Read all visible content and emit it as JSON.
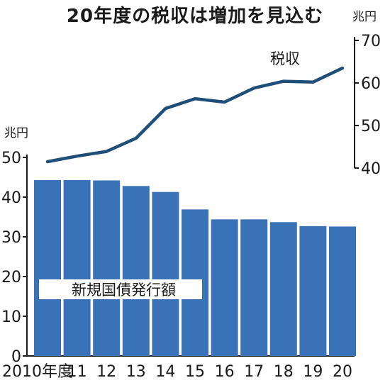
{
  "title": "20年度の税収は増加を見込む",
  "chart_data": {
    "type": "bar+line",
    "categories": [
      "2010年度",
      "11",
      "12",
      "13",
      "14",
      "15",
      "16",
      "17",
      "18",
      "19",
      "20"
    ],
    "series": [
      {
        "name": "新規国債発行額",
        "type": "bar",
        "axis": "left",
        "values": [
          44.3,
          44.3,
          44.2,
          42.8,
          41.3,
          36.9,
          34.4,
          34.4,
          33.7,
          32.7,
          32.6
        ]
      },
      {
        "name": "税収",
        "type": "line",
        "axis": "right",
        "values": [
          41.5,
          42.8,
          43.9,
          47.0,
          54.0,
          56.3,
          55.5,
          58.8,
          60.4,
          60.2,
          63.5
        ]
      }
    ],
    "left_axis": {
      "unit": "兆円",
      "ylim": [
        0,
        50
      ],
      "ticks": [
        "0",
        "10",
        "20",
        "30",
        "40",
        "50"
      ]
    },
    "right_axis": {
      "unit": "兆円",
      "ylim": [
        40,
        70
      ],
      "ticks": [
        "40",
        "50",
        "60",
        "70"
      ]
    },
    "colors": {
      "bar": "#3a72b8",
      "line": "#1f4e79"
    }
  }
}
